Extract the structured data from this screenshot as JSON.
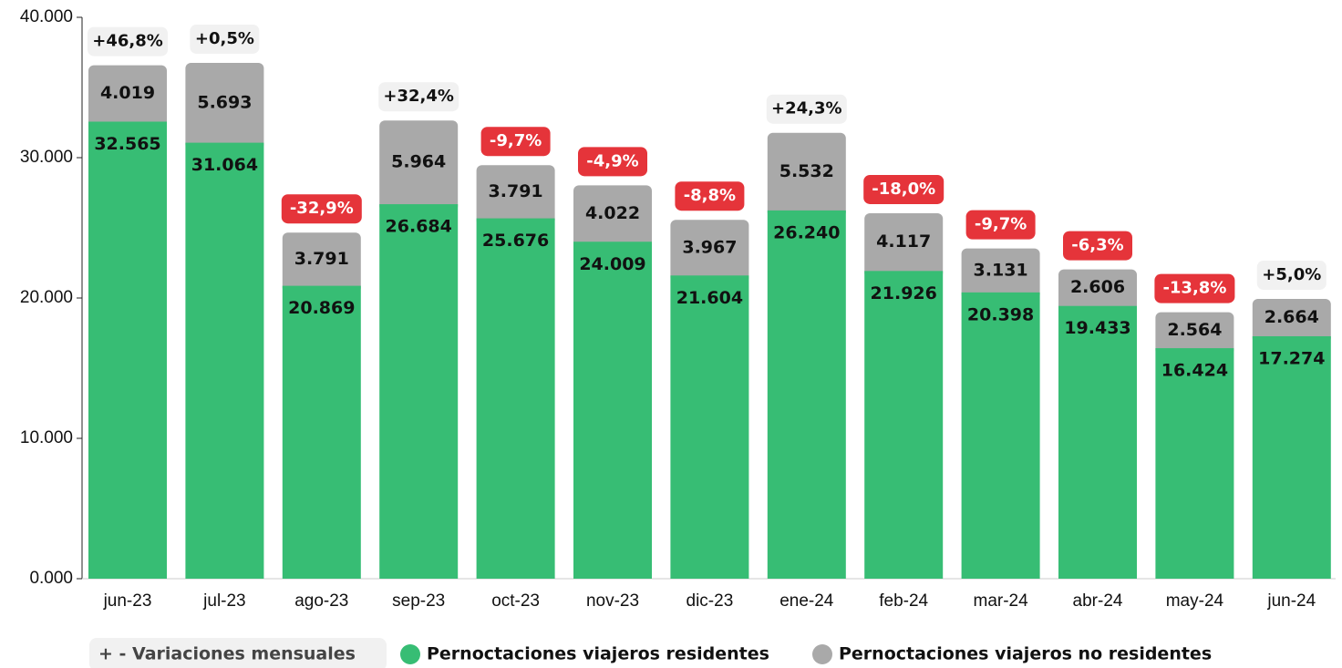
{
  "chart_data": {
    "type": "stacked_bar",
    "categories": [
      "jun-23",
      "jul-23",
      "ago-23",
      "sep-23",
      "oct-23",
      "nov-23",
      "dic-23",
      "ene-24",
      "feb-24",
      "mar-24",
      "abr-24",
      "may-24",
      "jun-24"
    ],
    "series": [
      {
        "name": "Pernoctaciones viajeros residentes",
        "color": "#37bd74",
        "values": [
          32565,
          31064,
          20869,
          26684,
          25676,
          24009,
          21604,
          26240,
          21926,
          20398,
          19433,
          16424,
          17274
        ],
        "value_labels": [
          "32.565",
          "31.064",
          "20.869",
          "26.684",
          "25.676",
          "24.009",
          "21.604",
          "26.240",
          "21.926",
          "20.398",
          "19.433",
          "16.424",
          "17.274"
        ]
      },
      {
        "name": "Pernoctaciones viajeros no residentes",
        "color": "#a9a9a9",
        "values": [
          4019,
          5693,
          3791,
          5964,
          3791,
          4022,
          3967,
          5532,
          4117,
          3131,
          2606,
          2564,
          2664
        ],
        "value_labels": [
          "4.019",
          "5.693",
          "3.791",
          "5.964",
          "3.791",
          "4.022",
          "3.967",
          "5.532",
          "4.117",
          "3.131",
          "2.606",
          "2.564",
          "2.664"
        ]
      }
    ],
    "variations": {
      "name": "+ - Variaciones mensuales",
      "values": [
        46.8,
        0.5,
        -32.9,
        32.4,
        -9.7,
        -4.9,
        -8.8,
        24.3,
        -18.0,
        -9.7,
        -6.3,
        -13.8,
        5.0
      ],
      "value_labels": [
        "+46,8%",
        "+0,5%",
        "-32,9%",
        "+32,4%",
        "-9,7%",
        "-4,9%",
        "-8,8%",
        "+24,3%",
        "-18,0%",
        "-9,7%",
        "-6,3%",
        "-13,8%",
        "+5,0%"
      ]
    },
    "ylim": [
      0,
      40000
    ],
    "yticks": [
      {
        "value": 0,
        "label": "0.000"
      },
      {
        "value": 10000,
        "label": "10.000"
      },
      {
        "value": 20000,
        "label": "20.000"
      },
      {
        "value": 30000,
        "label": "30.000"
      },
      {
        "value": 40000,
        "label": "40.000"
      }
    ]
  }
}
